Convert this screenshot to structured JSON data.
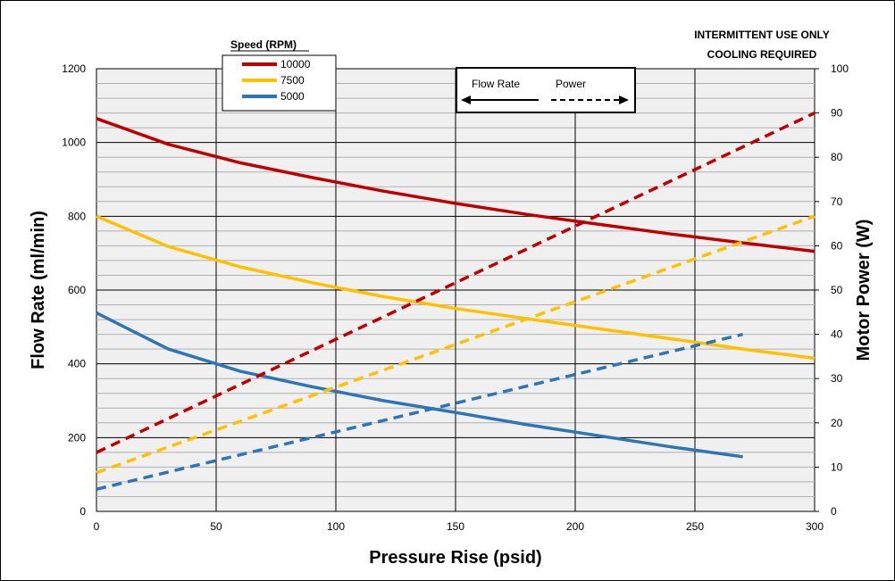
{
  "chart_data": {
    "type": "line",
    "x": [
      0,
      30,
      60,
      90,
      120,
      150,
      180,
      210,
      240,
      270,
      300
    ],
    "xlabel": "Pressure Rise (psid)",
    "ylabel_left": "Flow Rate (ml/min)",
    "ylabel_right": "Motor Power (W)",
    "xlim": [
      0,
      300
    ],
    "ylim_left": [
      0,
      1200
    ],
    "ylim_right": [
      0,
      100
    ],
    "x_ticks": [
      "0",
      "50",
      "100",
      "150",
      "200",
      "250",
      "300"
    ],
    "y_left_ticks": [
      "0",
      "200",
      "400",
      "600",
      "800",
      "1000",
      "1200"
    ],
    "y_right_ticks": [
      "0",
      "10",
      "20",
      "30",
      "40",
      "50",
      "60",
      "70",
      "80",
      "90",
      "100"
    ],
    "grid": true,
    "legend": {
      "title": "Speed (RPM)",
      "placement": "top-left",
      "entries": [
        "10000",
        "7500",
        "5000"
      ]
    },
    "style_legend": {
      "flow_label": "Flow Rate",
      "power_label": "Power"
    },
    "annotations": [
      "INTERMITTENT USE ONLY",
      "COOLING REQUIRED"
    ],
    "colors": {
      "10000": "#c00000",
      "7500": "#ffc000",
      "5000": "#2e75b6",
      "grid": "#000000",
      "plot_bg": "#f0f0f0"
    },
    "series": [
      {
        "name": "10000",
        "kind": "flow",
        "axis": "left",
        "x": [
          0,
          30,
          60,
          90,
          120,
          150,
          180,
          210,
          240,
          270,
          300
        ],
        "values": [
          1065,
          995,
          945,
          905,
          868,
          835,
          805,
          778,
          752,
          728,
          705
        ]
      },
      {
        "name": "7500",
        "kind": "flow",
        "axis": "left",
        "x": [
          0,
          30,
          60,
          90,
          120,
          150,
          180,
          210,
          240,
          270,
          300
        ],
        "values": [
          800,
          718,
          663,
          620,
          582,
          550,
          522,
          495,
          468,
          440,
          415
        ]
      },
      {
        "name": "5000",
        "kind": "flow",
        "axis": "left",
        "x": [
          0,
          30,
          60,
          90,
          120,
          150,
          180,
          210,
          240,
          270
        ],
        "values": [
          538,
          440,
          380,
          338,
          300,
          268,
          235,
          205,
          175,
          148
        ]
      },
      {
        "name": "10000",
        "kind": "power",
        "axis": "right",
        "x": [
          0,
          300
        ],
        "values": [
          13.3,
          90
        ]
      },
      {
        "name": "7500",
        "kind": "power",
        "axis": "right",
        "x": [
          0,
          300
        ],
        "values": [
          8.75,
          66.7
        ]
      },
      {
        "name": "5000",
        "kind": "power",
        "axis": "right",
        "x": [
          0,
          270
        ],
        "values": [
          5,
          40
        ]
      }
    ]
  }
}
